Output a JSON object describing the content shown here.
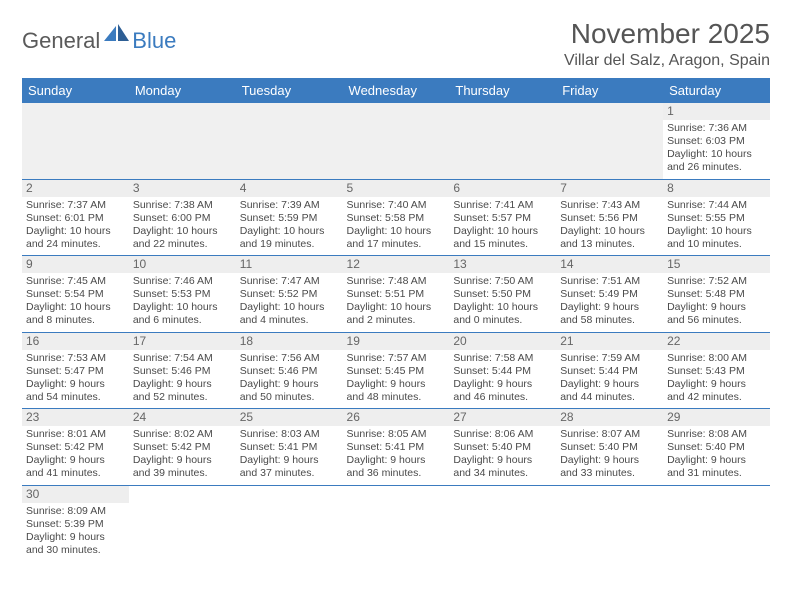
{
  "logo": {
    "part1": "General",
    "part2": "Blue"
  },
  "title": "November 2025",
  "location": "Villar del Salz, Aragon, Spain",
  "colors": {
    "header_bg": "#3b7bbf",
    "header_fg": "#ffffff",
    "border": "#3b7bbf",
    "text": "#4a4a4a"
  },
  "day_headers": [
    "Sunday",
    "Monday",
    "Tuesday",
    "Wednesday",
    "Thursday",
    "Friday",
    "Saturday"
  ],
  "weeks": [
    [
      null,
      null,
      null,
      null,
      null,
      null,
      {
        "n": "1",
        "sr": "7:36 AM",
        "ss": "6:03 PM",
        "dl": "10 hours and 26 minutes."
      }
    ],
    [
      {
        "n": "2",
        "sr": "7:37 AM",
        "ss": "6:01 PM",
        "dl": "10 hours and 24 minutes."
      },
      {
        "n": "3",
        "sr": "7:38 AM",
        "ss": "6:00 PM",
        "dl": "10 hours and 22 minutes."
      },
      {
        "n": "4",
        "sr": "7:39 AM",
        "ss": "5:59 PM",
        "dl": "10 hours and 19 minutes."
      },
      {
        "n": "5",
        "sr": "7:40 AM",
        "ss": "5:58 PM",
        "dl": "10 hours and 17 minutes."
      },
      {
        "n": "6",
        "sr": "7:41 AM",
        "ss": "5:57 PM",
        "dl": "10 hours and 15 minutes."
      },
      {
        "n": "7",
        "sr": "7:43 AM",
        "ss": "5:56 PM",
        "dl": "10 hours and 13 minutes."
      },
      {
        "n": "8",
        "sr": "7:44 AM",
        "ss": "5:55 PM",
        "dl": "10 hours and 10 minutes."
      }
    ],
    [
      {
        "n": "9",
        "sr": "7:45 AM",
        "ss": "5:54 PM",
        "dl": "10 hours and 8 minutes."
      },
      {
        "n": "10",
        "sr": "7:46 AM",
        "ss": "5:53 PM",
        "dl": "10 hours and 6 minutes."
      },
      {
        "n": "11",
        "sr": "7:47 AM",
        "ss": "5:52 PM",
        "dl": "10 hours and 4 minutes."
      },
      {
        "n": "12",
        "sr": "7:48 AM",
        "ss": "5:51 PM",
        "dl": "10 hours and 2 minutes."
      },
      {
        "n": "13",
        "sr": "7:50 AM",
        "ss": "5:50 PM",
        "dl": "10 hours and 0 minutes."
      },
      {
        "n": "14",
        "sr": "7:51 AM",
        "ss": "5:49 PM",
        "dl": "9 hours and 58 minutes."
      },
      {
        "n": "15",
        "sr": "7:52 AM",
        "ss": "5:48 PM",
        "dl": "9 hours and 56 minutes."
      }
    ],
    [
      {
        "n": "16",
        "sr": "7:53 AM",
        "ss": "5:47 PM",
        "dl": "9 hours and 54 minutes."
      },
      {
        "n": "17",
        "sr": "7:54 AM",
        "ss": "5:46 PM",
        "dl": "9 hours and 52 minutes."
      },
      {
        "n": "18",
        "sr": "7:56 AM",
        "ss": "5:46 PM",
        "dl": "9 hours and 50 minutes."
      },
      {
        "n": "19",
        "sr": "7:57 AM",
        "ss": "5:45 PM",
        "dl": "9 hours and 48 minutes."
      },
      {
        "n": "20",
        "sr": "7:58 AM",
        "ss": "5:44 PM",
        "dl": "9 hours and 46 minutes."
      },
      {
        "n": "21",
        "sr": "7:59 AM",
        "ss": "5:44 PM",
        "dl": "9 hours and 44 minutes."
      },
      {
        "n": "22",
        "sr": "8:00 AM",
        "ss": "5:43 PM",
        "dl": "9 hours and 42 minutes."
      }
    ],
    [
      {
        "n": "23",
        "sr": "8:01 AM",
        "ss": "5:42 PM",
        "dl": "9 hours and 41 minutes."
      },
      {
        "n": "24",
        "sr": "8:02 AM",
        "ss": "5:42 PM",
        "dl": "9 hours and 39 minutes."
      },
      {
        "n": "25",
        "sr": "8:03 AM",
        "ss": "5:41 PM",
        "dl": "9 hours and 37 minutes."
      },
      {
        "n": "26",
        "sr": "8:05 AM",
        "ss": "5:41 PM",
        "dl": "9 hours and 36 minutes."
      },
      {
        "n": "27",
        "sr": "8:06 AM",
        "ss": "5:40 PM",
        "dl": "9 hours and 34 minutes."
      },
      {
        "n": "28",
        "sr": "8:07 AM",
        "ss": "5:40 PM",
        "dl": "9 hours and 33 minutes."
      },
      {
        "n": "29",
        "sr": "8:08 AM",
        "ss": "5:40 PM",
        "dl": "9 hours and 31 minutes."
      }
    ],
    [
      {
        "n": "30",
        "sr": "8:09 AM",
        "ss": "5:39 PM",
        "dl": "9 hours and 30 minutes."
      },
      null,
      null,
      null,
      null,
      null,
      null
    ]
  ],
  "labels": {
    "sunrise": "Sunrise:",
    "sunset": "Sunset:",
    "daylight": "Daylight:"
  }
}
